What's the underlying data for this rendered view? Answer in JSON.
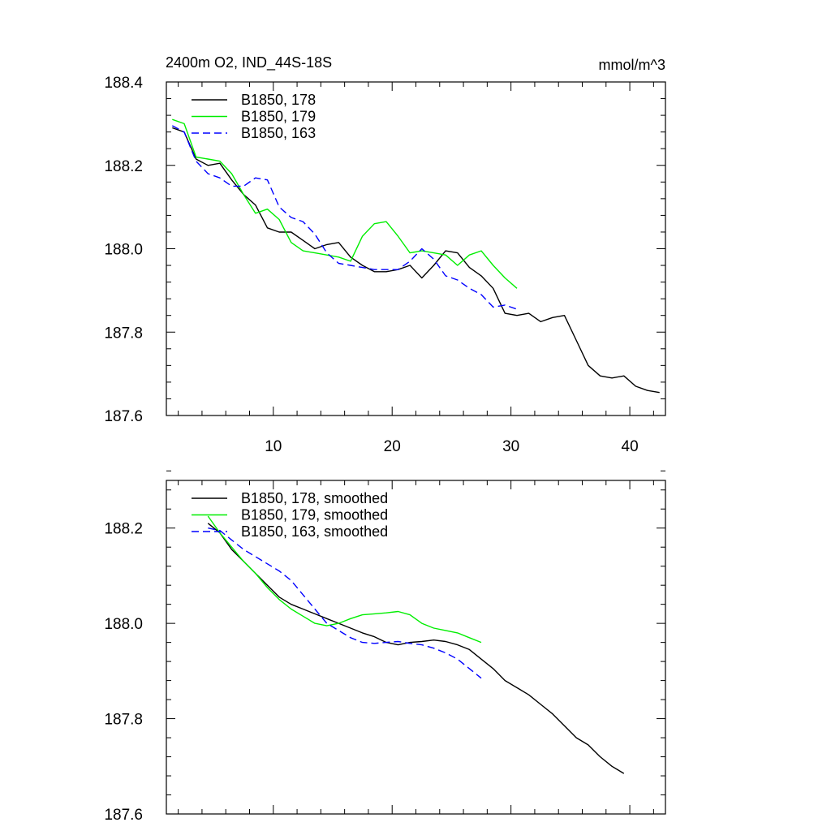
{
  "chart_data": [
    {
      "type": "line",
      "title": "2400m O2, IND_44S-18S",
      "units": "mmol/m^3",
      "xlabel": "",
      "ylabel": "",
      "xlim": [
        1,
        43
      ],
      "ylim": [
        187.6,
        188.4
      ],
      "x_ticks": [
        10,
        20,
        30,
        40
      ],
      "x_tick_labels": [
        "10",
        "20",
        "30",
        "40"
      ],
      "y_ticks": [
        187.6,
        187.8,
        188.0,
        188.2,
        188.4
      ],
      "y_tick_labels": [
        "187.6",
        "187.8",
        "188.0",
        "188.2",
        "188.4"
      ],
      "grid": false,
      "legend_position": "top-left",
      "series": [
        {
          "name": "B1850, 178",
          "color": "#000000",
          "dash": "solid",
          "x": [
            1.5,
            2.5,
            3.5,
            4.5,
            5.5,
            6.5,
            7.5,
            8.5,
            9.5,
            10.5,
            11.5,
            12.5,
            13.5,
            14.5,
            15.5,
            16.5,
            17.5,
            18.5,
            19.5,
            20.5,
            21.5,
            22.5,
            23.5,
            24.5,
            25.5,
            26.5,
            27.5,
            28.5,
            29.5,
            30.5,
            31.5,
            32.5,
            33.5,
            34.5,
            35.5,
            36.5,
            37.5,
            38.5,
            39.5,
            40.5,
            41.5,
            42.5
          ],
          "y": [
            188.29,
            188.28,
            188.215,
            188.2,
            188.205,
            188.165,
            188.13,
            188.105,
            188.05,
            188.04,
            188.04,
            188.02,
            188.0,
            188.01,
            188.015,
            187.98,
            187.96,
            187.945,
            187.945,
            187.95,
            187.96,
            187.93,
            187.96,
            187.995,
            187.99,
            187.955,
            187.935,
            187.905,
            187.845,
            187.84,
            187.845,
            187.825,
            187.835,
            187.84,
            187.78,
            187.72,
            187.695,
            187.69,
            187.695,
            187.67,
            187.66,
            187.655
          ]
        },
        {
          "name": "B1850, 179",
          "color": "#00ee00",
          "dash": "solid",
          "x": [
            1.5,
            2.5,
            3.5,
            4.5,
            5.5,
            6.5,
            7.5,
            8.5,
            9.5,
            10.5,
            11.5,
            12.5,
            13.5,
            14.5,
            15.5,
            16.5,
            17.5,
            18.5,
            19.5,
            20.5,
            21.5,
            22.5,
            23.5,
            24.5,
            25.5,
            26.5,
            27.5,
            28.5,
            29.5,
            30.5
          ],
          "y": [
            188.31,
            188.3,
            188.22,
            188.215,
            188.21,
            188.18,
            188.13,
            188.085,
            188.095,
            188.07,
            188.015,
            187.995,
            187.99,
            187.985,
            187.98,
            187.97,
            188.03,
            188.06,
            188.065,
            188.03,
            187.99,
            187.995,
            187.99,
            187.985,
            187.96,
            187.985,
            187.995,
            187.96,
            187.93,
            187.905
          ]
        },
        {
          "name": "B1850, 163",
          "color": "#0000ff",
          "dash": "dashed",
          "x": [
            1.5,
            2.5,
            3.5,
            4.5,
            5.5,
            6.5,
            7.5,
            8.5,
            9.5,
            10.5,
            11.5,
            12.5,
            13.5,
            14.5,
            15.5,
            16.5,
            17.5,
            18.5,
            19.5,
            20.5,
            21.5,
            22.5,
            23.5,
            24.5,
            25.5,
            26.5,
            27.5,
            28.5,
            29.5,
            30.5
          ],
          "y": [
            188.295,
            188.28,
            188.21,
            188.18,
            188.17,
            188.15,
            188.15,
            188.17,
            188.165,
            188.1,
            188.075,
            188.065,
            188.035,
            187.99,
            187.965,
            187.96,
            187.955,
            187.95,
            187.95,
            187.95,
            187.97,
            188.0,
            187.975,
            187.935,
            187.925,
            187.905,
            187.89,
            187.86,
            187.865,
            187.855
          ]
        }
      ]
    },
    {
      "type": "line",
      "title": "",
      "xlabel": "",
      "ylabel": "",
      "xlim": [
        1,
        43
      ],
      "ylim": [
        187.6,
        188.3
      ],
      "x_ticks": [
        10,
        20,
        30,
        40
      ],
      "y_ticks": [
        187.6,
        187.8,
        188.0,
        188.2
      ],
      "y_tick_labels": [
        "187.6",
        "187.8",
        "188.0",
        "188.2"
      ],
      "grid": false,
      "legend_position": "top-left",
      "series": [
        {
          "name": "B1850, 178, smoothed",
          "color": "#000000",
          "dash": "solid",
          "x": [
            4.5,
            5.5,
            6.5,
            7.5,
            8.5,
            9.5,
            10.5,
            11.5,
            12.5,
            13.5,
            14.5,
            15.5,
            16.5,
            17.5,
            18.5,
            19.5,
            20.5,
            21.5,
            22.5,
            23.5,
            24.5,
            25.5,
            26.5,
            27.5,
            28.5,
            29.5,
            30.5,
            31.5,
            32.5,
            33.5,
            34.5,
            35.5,
            36.5,
            37.5,
            38.5,
            39.5
          ],
          "y": [
            188.21,
            188.19,
            188.155,
            188.13,
            188.105,
            188.08,
            188.055,
            188.04,
            188.03,
            188.02,
            188.01,
            188.0,
            187.99,
            187.98,
            187.972,
            187.96,
            187.955,
            187.96,
            187.962,
            187.965,
            187.962,
            187.955,
            187.945,
            187.925,
            187.905,
            187.88,
            187.865,
            187.85,
            187.83,
            187.81,
            187.785,
            187.76,
            187.745,
            187.72,
            187.7,
            187.685
          ]
        },
        {
          "name": "B1850, 179, smoothed",
          "color": "#00ee00",
          "dash": "solid",
          "x": [
            4.5,
            5.5,
            6.5,
            7.5,
            8.5,
            9.5,
            10.5,
            11.5,
            12.5,
            13.5,
            14.5,
            15.5,
            16.5,
            17.5,
            18.5,
            19.5,
            20.5,
            21.5,
            22.5,
            23.5,
            24.5,
            25.5,
            26.5,
            27.5
          ],
          "y": [
            188.225,
            188.19,
            188.16,
            188.13,
            188.105,
            188.075,
            188.05,
            188.03,
            188.015,
            188.0,
            187.995,
            188.0,
            188.01,
            188.018,
            188.02,
            188.022,
            188.025,
            188.018,
            188.0,
            187.99,
            187.985,
            187.98,
            187.97,
            187.96
          ]
        },
        {
          "name": "B1850, 163, smoothed",
          "color": "#0000ff",
          "dash": "dashed",
          "x": [
            4.5,
            5.5,
            6.5,
            7.5,
            8.5,
            9.5,
            10.5,
            11.5,
            12.5,
            13.5,
            14.5,
            15.5,
            16.5,
            17.5,
            18.5,
            19.5,
            20.5,
            21.5,
            22.5,
            23.5,
            24.5,
            25.5,
            26.5,
            27.5
          ],
          "y": [
            188.2,
            188.195,
            188.175,
            188.155,
            188.14,
            188.125,
            188.11,
            188.09,
            188.06,
            188.03,
            188.0,
            187.985,
            187.97,
            187.96,
            187.958,
            187.96,
            187.962,
            187.958,
            187.955,
            187.948,
            187.938,
            187.925,
            187.905,
            187.885
          ]
        }
      ]
    }
  ]
}
